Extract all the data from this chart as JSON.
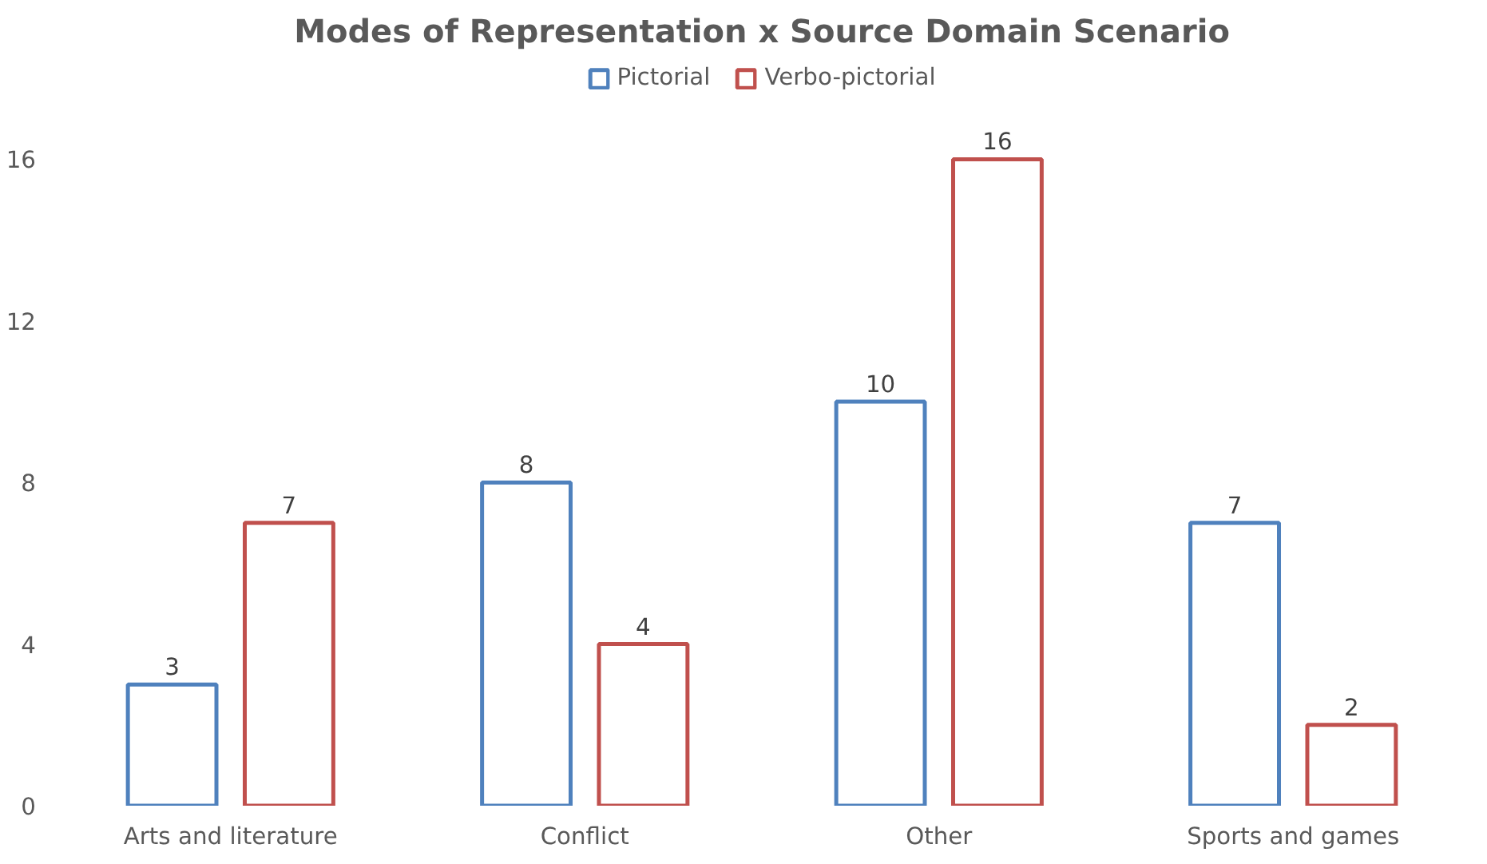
{
  "chart_data": {
    "type": "bar",
    "title": "Modes of Representation x Source Domain Scenario",
    "categories": [
      "Arts and literature",
      "Conflict",
      "Other",
      "Sports and games"
    ],
    "series": [
      {
        "name": "Pictorial",
        "color": "#4f81bd",
        "values": [
          3,
          8,
          10,
          7
        ]
      },
      {
        "name": "Verbo-pictorial",
        "color": "#c0504d",
        "values": [
          7,
          4,
          16,
          2
        ]
      }
    ],
    "ylim": [
      0,
      18.5
    ],
    "yticks": [
      0,
      4,
      8,
      12,
      16
    ],
    "grid": false,
    "legend": "top",
    "data_labels": true
  }
}
